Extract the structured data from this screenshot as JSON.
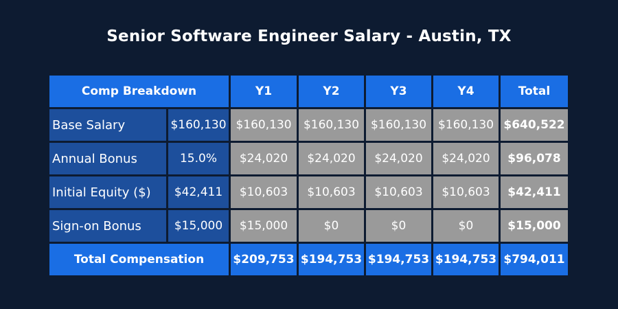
{
  "title": "Senior Software Engineer Salary - Austin, TX",
  "colors": {
    "background": "#0d1b31",
    "header_blue": "#1a6ee4",
    "label_blue": "#1d4f9c",
    "value_gray": "#9a9a9a"
  },
  "chart_data": {
    "type": "table",
    "title": "Senior Software Engineer Salary - Austin, TX",
    "columns": [
      "Comp Breakdown",
      "Y1",
      "Y2",
      "Y3",
      "Y4",
      "Total"
    ],
    "rows": [
      {
        "label": "Base Salary",
        "input": "$160,130",
        "values": [
          "$160,130",
          "$160,130",
          "$160,130",
          "$160,130"
        ],
        "total": "$640,522"
      },
      {
        "label": "Annual Bonus",
        "input": "15.0%",
        "values": [
          "$24,020",
          "$24,020",
          "$24,020",
          "$24,020"
        ],
        "total": "$96,078"
      },
      {
        "label": "Initial Equity ($)",
        "input": "$42,411",
        "values": [
          "$10,603",
          "$10,603",
          "$10,603",
          "$10,603"
        ],
        "total": "$42,411"
      },
      {
        "label": "Sign-on Bonus",
        "input": "$15,000",
        "values": [
          "$15,000",
          "$0",
          "$0",
          "$0"
        ],
        "total": "$15,000"
      }
    ],
    "footer": {
      "label": "Total Compensation",
      "values": [
        "$209,753",
        "$194,753",
        "$194,753",
        "$194,753"
      ],
      "total": "$794,011"
    }
  }
}
